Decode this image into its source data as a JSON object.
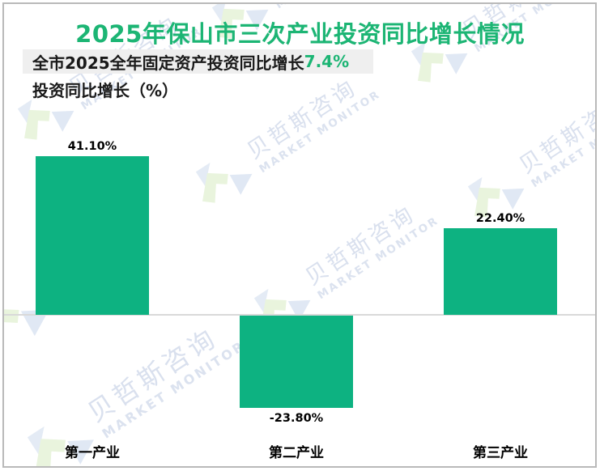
{
  "title": "2025年保山市三次产业投资同比增长情况",
  "subtitle": {
    "prefix": "全市2025全年固定资产投资同比增长",
    "highlight_value": "7.4%"
  },
  "axis_caption": "投资同比增长（%）",
  "watermark": {
    "cn": "贝哲斯咨询",
    "en": "MARKET MONITOR"
  },
  "colors": {
    "title_green": "#1cb574",
    "bar_green": "#0db281",
    "highlight_bg": "#efefef",
    "axis_line": "#d9d9d9",
    "frame_border": "#b9b9b9",
    "text_black": "#1a1a1a",
    "watermark_text": "#d9e0ee"
  },
  "chart_data": {
    "type": "bar",
    "title": "2025年保山市三次产业投资同比增长情况",
    "subtitle_annotation": "全市2025全年固定资产投资同比增长7.4%",
    "categories": [
      "第一产业",
      "第二产业",
      "第三产业"
    ],
    "values": [
      41.1,
      -23.8,
      22.4
    ],
    "value_labels": [
      "41.10%",
      "-23.80%",
      "22.40%"
    ],
    "series_unit": "%",
    "xlabel": "",
    "ylabel": "投资同比增长（%）",
    "ylim": [
      -30,
      45
    ],
    "grid": false,
    "legend": false,
    "axis_ticks_visible": false,
    "bar_color": "#0db281"
  }
}
